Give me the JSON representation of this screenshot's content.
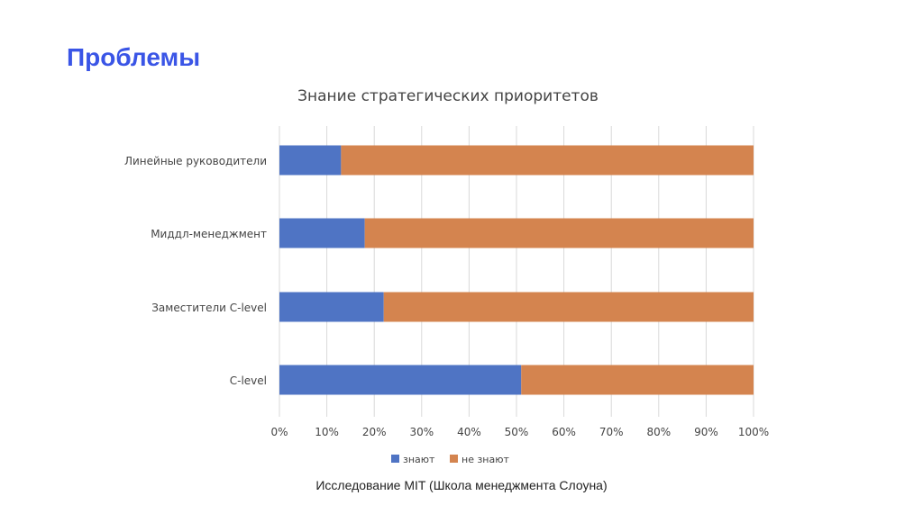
{
  "slide": {
    "title": "Проблемы",
    "caption": "Исследование MIT (Школа менеджмента Слоуна)"
  },
  "chart_data": {
    "type": "bar",
    "orientation": "horizontal",
    "stacked": "percent",
    "title": "Знание стратегических приоритетов",
    "categories": [
      "Линейные руководители",
      "Миддл-менеджмент",
      "Заместители C-level",
      "C-level"
    ],
    "series": [
      {
        "name": "знают",
        "values": [
          13,
          18,
          22,
          51
        ],
        "color": "#4f74c4"
      },
      {
        "name": "не знают",
        "values": [
          87,
          82,
          78,
          49
        ],
        "color": "#d4844f"
      }
    ],
    "xlim": [
      0,
      100
    ],
    "xticks": [
      "0%",
      "10%",
      "20%",
      "30%",
      "40%",
      "50%",
      "60%",
      "70%",
      "80%",
      "90%",
      "100%"
    ],
    "grid": true,
    "legend": "bottom"
  }
}
